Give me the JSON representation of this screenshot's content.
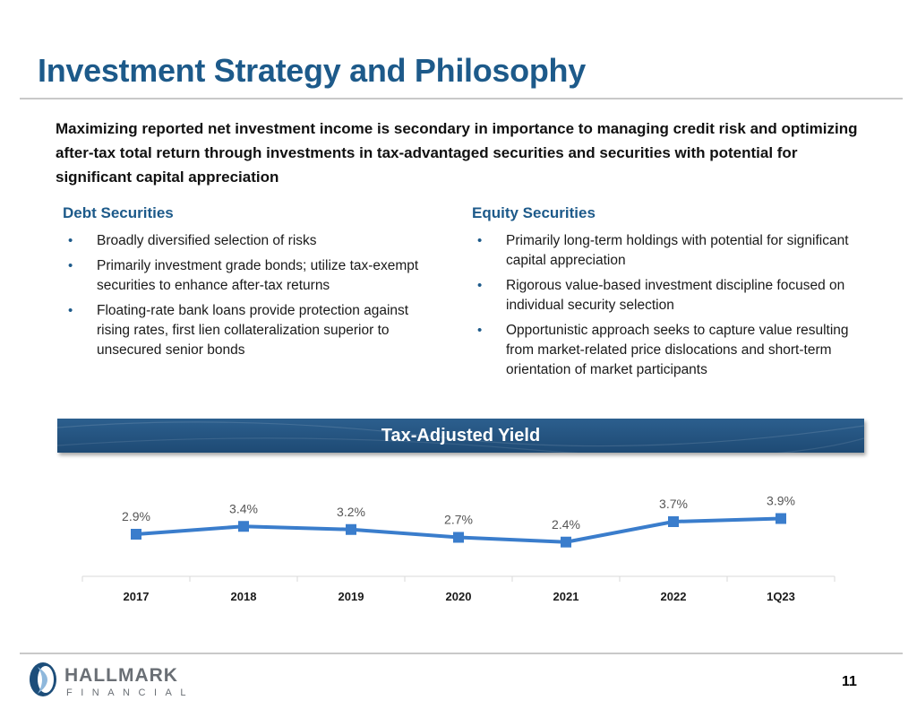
{
  "page": {
    "title": "Investment Strategy and Philosophy",
    "intro": "Maximizing reported net investment income is secondary in importance to managing credit risk and optimizing after-tax total return through investments in tax-advantaged securities and securities with potential for significant capital appreciation",
    "page_number": "11"
  },
  "debt": {
    "heading": "Debt Securities",
    "items": [
      "Broadly diversified selection of risks",
      "Primarily investment grade bonds; utilize tax-exempt securities to enhance after-tax returns",
      "Floating-rate bank loans provide protection against rising rates, first lien collateralization superior to unsecured senior bonds"
    ]
  },
  "equity": {
    "heading": "Equity Securities",
    "items": [
      "Primarily long-term holdings with potential for significant capital appreciation",
      "Rigorous value-based investment discipline focused on individual security selection",
      "Opportunistic approach seeks to capture value resulting from market-related price dislocations and short-term orientation of market participants"
    ]
  },
  "banner": {
    "title": "Tax-Adjusted Yield"
  },
  "logo": {
    "word1": "HALLMARK",
    "word2": "FINANCIAL"
  },
  "colors": {
    "accent": "#1d5a8a",
    "series": "#3a7dcc"
  },
  "chart_data": {
    "type": "line",
    "title": "Tax-Adjusted Yield",
    "categories": [
      "2017",
      "2018",
      "2019",
      "2020",
      "2021",
      "2022",
      "1Q23"
    ],
    "series": [
      {
        "values": [
          2.9,
          3.4,
          3.2,
          2.7,
          2.4,
          3.7,
          3.9
        ]
      }
    ],
    "data_labels": [
      "2.9%",
      "3.4%",
      "3.2%",
      "2.7%",
      "2.4%",
      "3.7%",
      "3.9%"
    ],
    "unit": "%",
    "ylim": [
      0,
      4.5
    ],
    "grid": false,
    "legend": "none"
  }
}
